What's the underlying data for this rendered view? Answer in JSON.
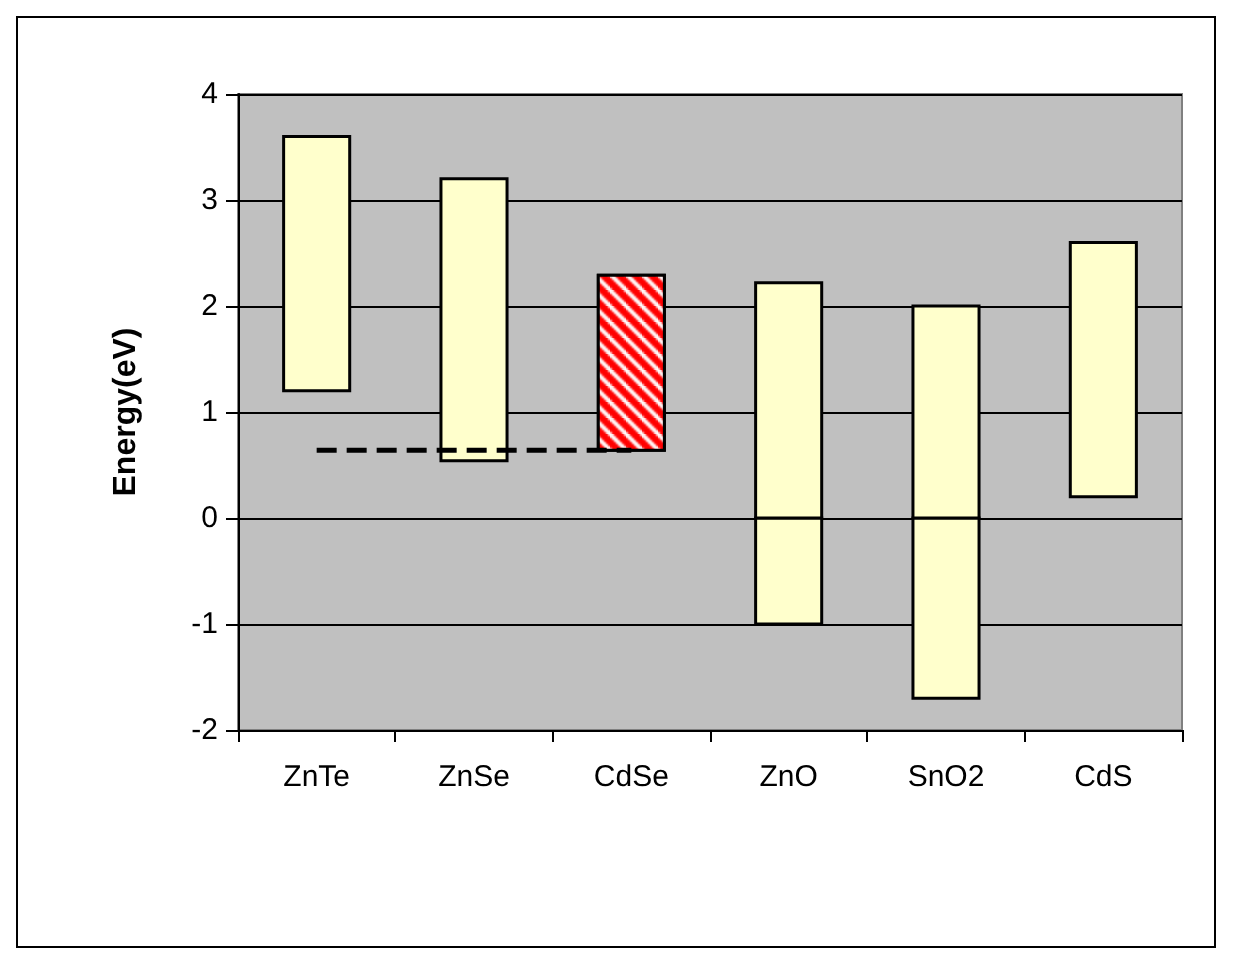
{
  "chart_data": {
    "type": "bar",
    "ylabel": "Energy(eV)",
    "categories": [
      "ZnTe",
      "ZnSe",
      "CdSe",
      "ZnO",
      "SnO2",
      "CdS"
    ],
    "series": [
      {
        "base": [
          null,
          null,
          null,
          -1,
          -1.7,
          null
        ],
        "values": [
          null,
          null,
          null,
          1,
          1.7,
          null
        ],
        "colors": [
          null,
          null,
          null,
          "#ffffcc",
          "#ffffcc",
          null
        ]
      },
      {
        "base": [
          1.2,
          0.54,
          0.64,
          0,
          0,
          0.2
        ],
        "values": [
          2.4,
          2.66,
          1.65,
          2.22,
          2.0,
          2.4
        ],
        "colors": [
          "#ffffcc",
          "#ffffcc",
          "#ff0000",
          "#ffffcc",
          "#ffffcc",
          "#ffffcc"
        ]
      },
      {
        "type": "line",
        "values": [
          0.64,
          0.64,
          0.64,
          null,
          null,
          null
        ],
        "color": "#000000",
        "line_style": "dashed",
        "marker": "none"
      }
    ],
    "ylim": [
      -2,
      4
    ],
    "yticks": [
      -2,
      -1,
      0,
      1,
      2,
      3,
      4
    ],
    "grid": "y"
  }
}
